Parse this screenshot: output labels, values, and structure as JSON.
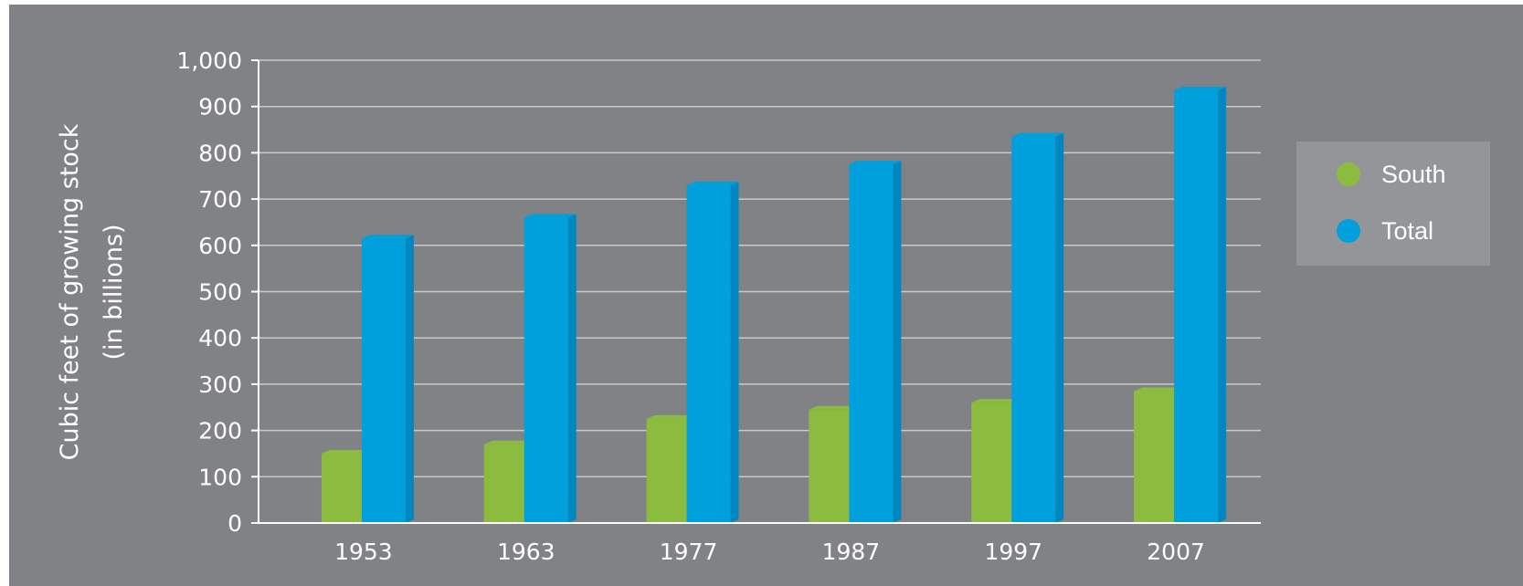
{
  "chart_data": {
    "type": "bar",
    "title": "",
    "xlabel": "",
    "ylabel": "Cubic feet of growing stock (in billions)",
    "ylabel_lines": [
      "Cubic feet of growing stock",
      "(in billions)"
    ],
    "categories": [
      "1953",
      "1963",
      "1977",
      "1987",
      "1997",
      "2007"
    ],
    "series": [
      {
        "name": "South",
        "values": [
          150,
          170,
          225,
          245,
          260,
          285
        ],
        "color": "#8cbc3f",
        "side_color": "#76a533"
      },
      {
        "name": "Total",
        "values": [
          615,
          660,
          730,
          775,
          835,
          935
        ],
        "color": "#00a0dd",
        "side_color": "#0086c0"
      }
    ],
    "ylim": [
      0,
      1000
    ],
    "yticks": [
      0,
      100,
      200,
      300,
      400,
      500,
      600,
      700,
      800,
      900,
      1000
    ],
    "ytick_labels": [
      "0",
      "100",
      "200",
      "300",
      "400",
      "500",
      "600",
      "700",
      "800",
      "900",
      "1,000"
    ],
    "grid": true,
    "legend_position": "right",
    "background_color": "#808285",
    "legend_background": "#939598",
    "text_color": "#ffffff"
  }
}
